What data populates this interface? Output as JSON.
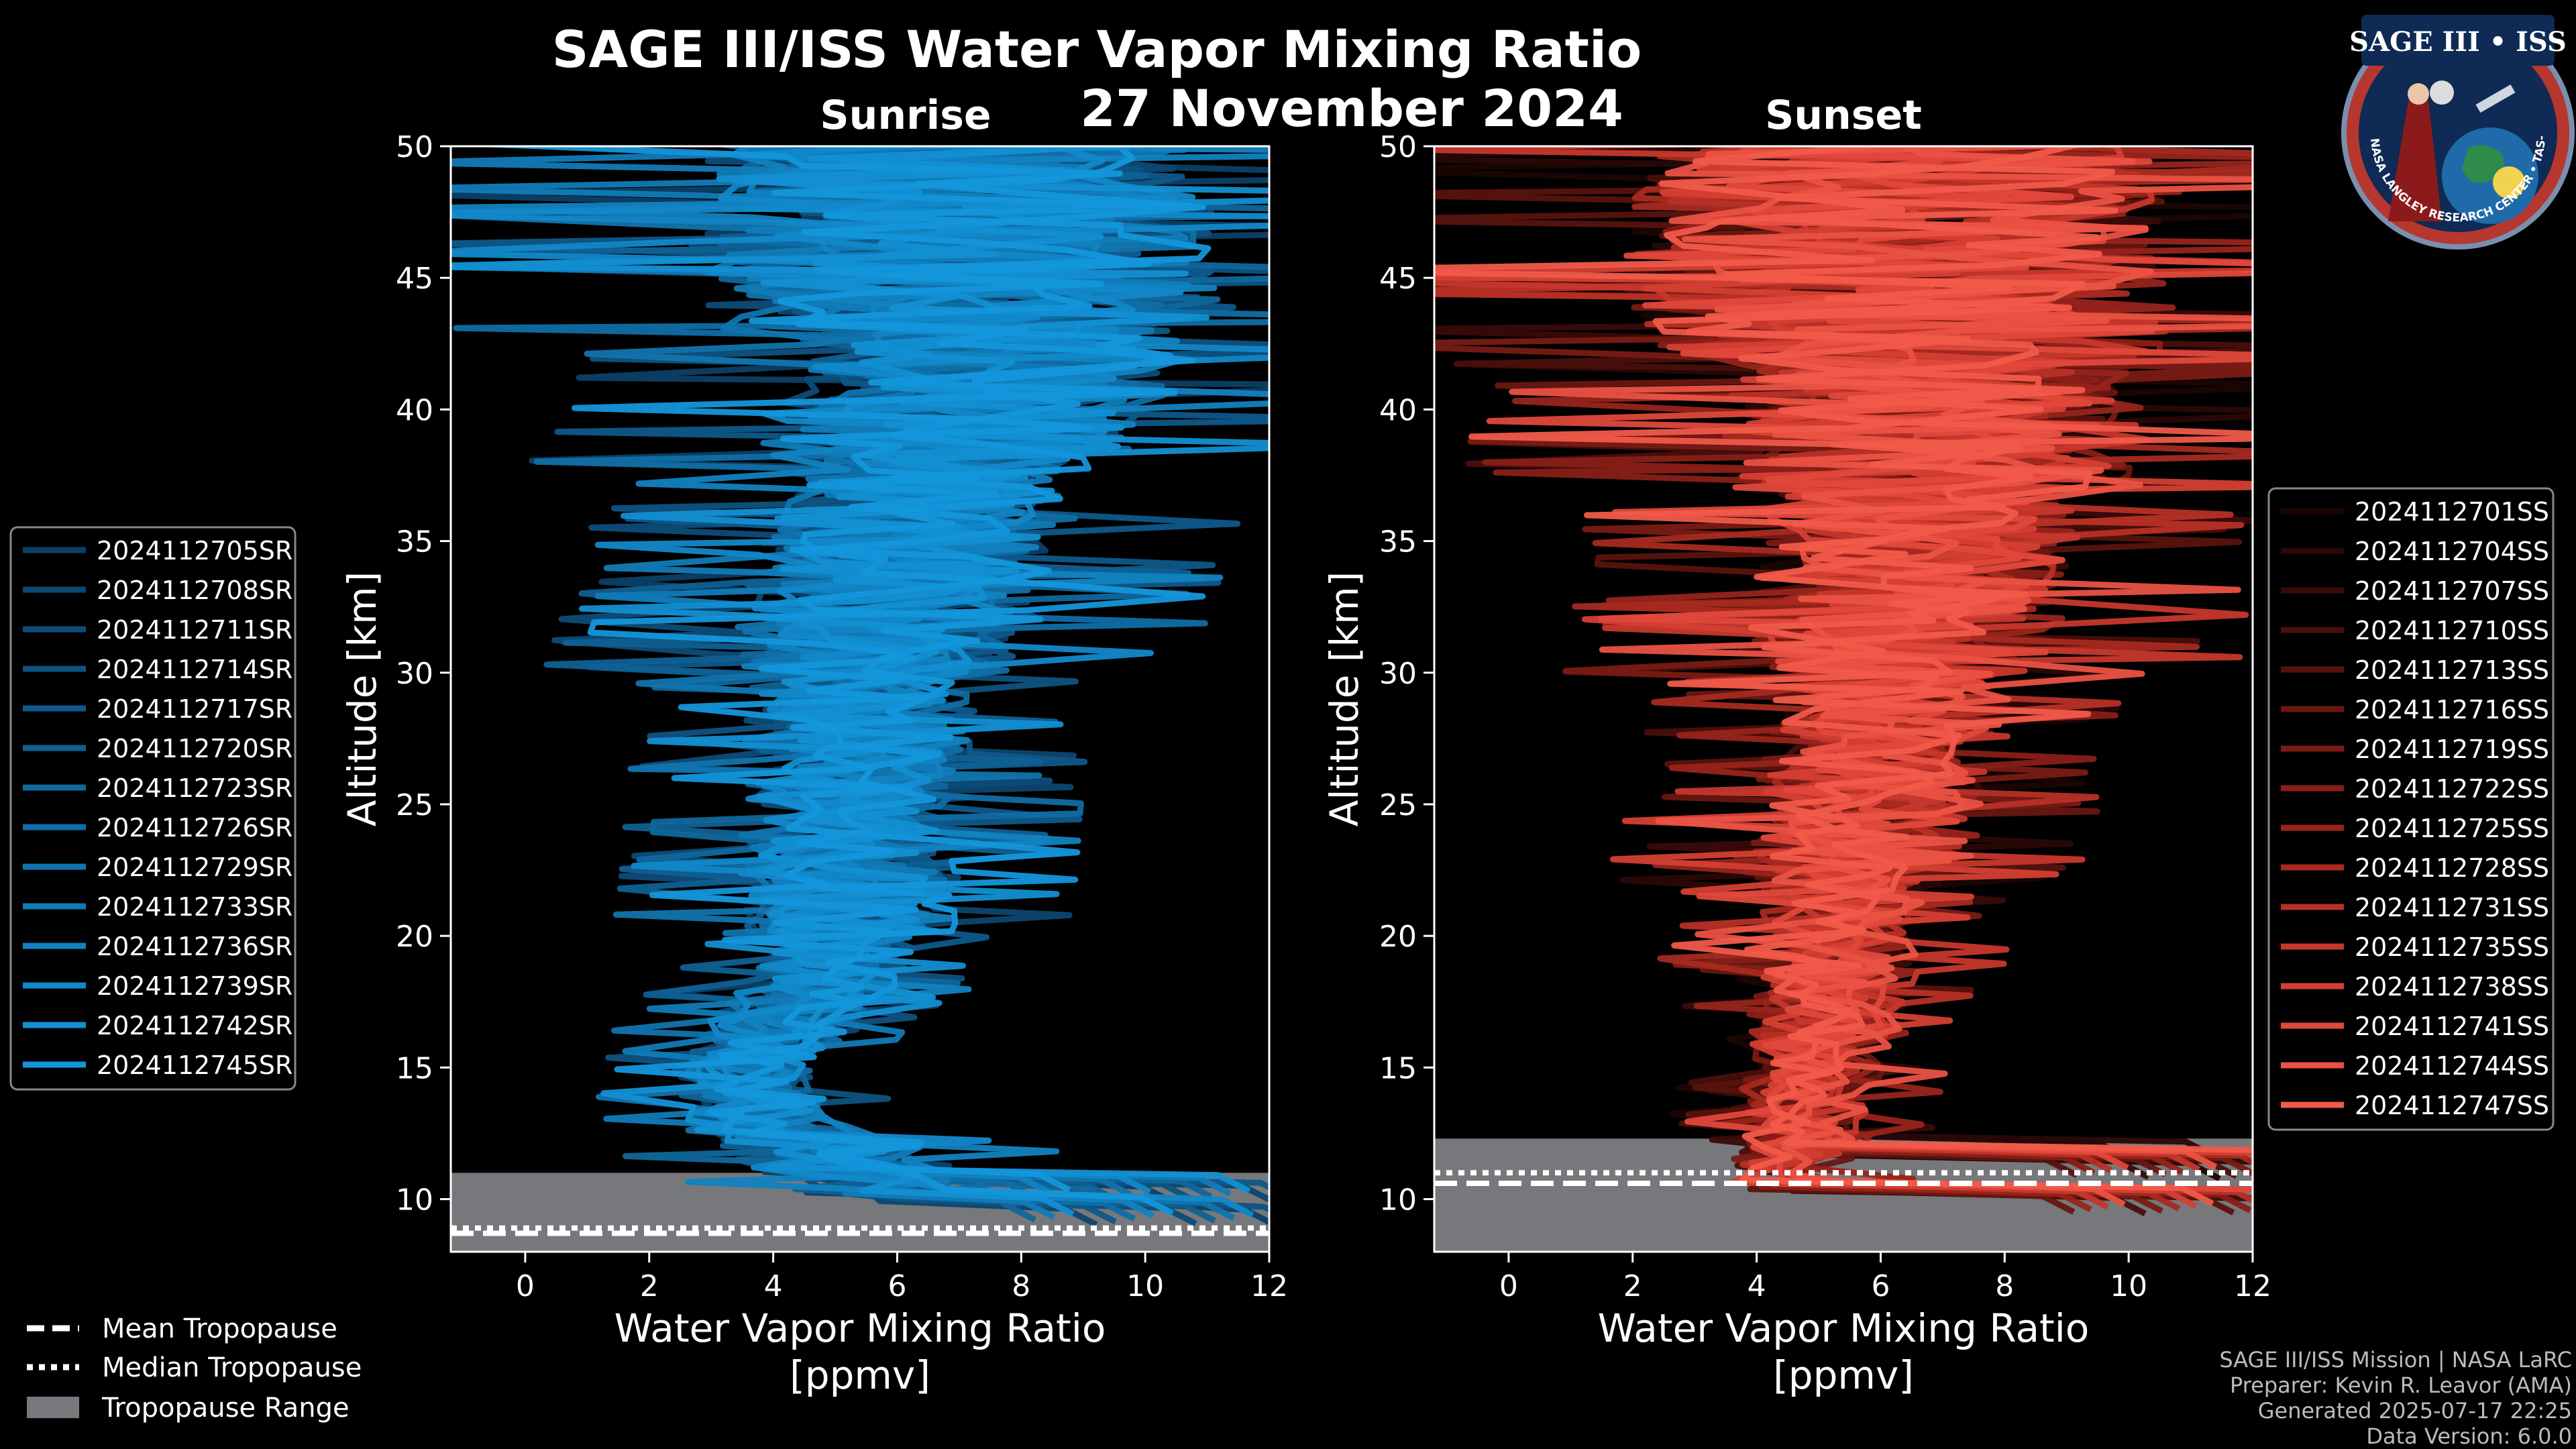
{
  "chart_data": {
    "type": "line",
    "title": "SAGE III/ISS Water Vapor Mixing Ratio",
    "subtitle": "27 November 2024",
    "panels": [
      {
        "name": "sunrise",
        "label": "Sunrise",
        "xlabel_line1": "Water Vapor Mixing Ratio",
        "xlabel_line2": "[ppmv]",
        "ylabel": "Altitude [km]",
        "xlim": [
          -1.2,
          12
        ],
        "ylim": [
          8,
          50
        ],
        "xticks": [
          0,
          2,
          4,
          6,
          8,
          10,
          12
        ],
        "yticks": [
          10,
          15,
          20,
          25,
          30,
          35,
          40,
          45,
          50
        ],
        "tropopause": {
          "range": [
            8,
            11
          ],
          "mean": 8.7,
          "median": 8.9
        },
        "legend_position": "left",
        "series": [
          {
            "name": "2024112705SR",
            "color": "#0c3f66"
          },
          {
            "name": "2024112708SR",
            "color": "#0d466f"
          },
          {
            "name": "2024112711SR",
            "color": "#0d4c78"
          },
          {
            "name": "2024112714SR",
            "color": "#0e5381"
          },
          {
            "name": "2024112717SR",
            "color": "#0e598a"
          },
          {
            "name": "2024112720SR",
            "color": "#0f6093"
          },
          {
            "name": "2024112723SR",
            "color": "#10679c"
          },
          {
            "name": "2024112726SR",
            "color": "#106ea5"
          },
          {
            "name": "2024112729SR",
            "color": "#1174ae"
          },
          {
            "name": "2024112733SR",
            "color": "#117bb7"
          },
          {
            "name": "2024112736SR",
            "color": "#1282c0"
          },
          {
            "name": "2024112739SR",
            "color": "#1288c9"
          },
          {
            "name": "2024112742SR",
            "color": "#138fd2"
          },
          {
            "name": "2024112745SR",
            "color": "#1496db"
          }
        ]
      },
      {
        "name": "sunset",
        "label": "Sunset",
        "xlabel_line1": "Water Vapor Mixing Ratio",
        "xlabel_line2": "[ppmv]",
        "ylabel": "Altitude [km]",
        "xlim": [
          -1.2,
          12
        ],
        "ylim": [
          8,
          50
        ],
        "xticks": [
          0,
          2,
          4,
          6,
          8,
          10,
          12
        ],
        "yticks": [
          10,
          15,
          20,
          25,
          30,
          35,
          40,
          45,
          50
        ],
        "tropopause": {
          "range": [
            8,
            12.3
          ],
          "mean": 10.6,
          "median": 11.0
        },
        "legend_position": "right",
        "series": [
          {
            "name": "2024112701SS",
            "color": "#1a0503"
          },
          {
            "name": "2024112704SS",
            "color": "#290806"
          },
          {
            "name": "2024112707SS",
            "color": "#390b08"
          },
          {
            "name": "2024112710SS",
            "color": "#490f0b"
          },
          {
            "name": "2024112713SS",
            "color": "#59130e"
          },
          {
            "name": "2024112716SS",
            "color": "#681711"
          },
          {
            "name": "2024112719SS",
            "color": "#781b14"
          },
          {
            "name": "2024112722SS",
            "color": "#881f17"
          },
          {
            "name": "2024112725SS",
            "color": "#97241b"
          },
          {
            "name": "2024112728SS",
            "color": "#a72a20"
          },
          {
            "name": "2024112731SS",
            "color": "#b73026"
          },
          {
            "name": "2024112735SS",
            "color": "#c6372c"
          },
          {
            "name": "2024112738SS",
            "color": "#d43f33"
          },
          {
            "name": "2024112741SS",
            "color": "#e0483b"
          },
          {
            "name": "2024112744SS",
            "color": "#ea5243"
          },
          {
            "name": "2024112747SS",
            "color": "#f15a4a"
          }
        ]
      }
    ],
    "tropopause_legend": [
      "Mean Tropopause",
      "Median Tropopause",
      "Tropopause Range"
    ]
  },
  "logo": {
    "text_top": "SAGE III • ISS",
    "text_bottom": "BALL • NASA LANGLEY RESEARCH CENTER • TAS-I • ESA"
  },
  "credits": {
    "line1": "SAGE III/ISS Mission | NASA LaRC",
    "line2": "Preparer: Kevin R. Leavor (AMA)",
    "line3": "Generated 2025-07-17 22:25",
    "line4": "Data Version: 6.0.0"
  },
  "colors": {
    "background": "#000000",
    "tropopause_fill": "#77787b",
    "axes": "#ffffff"
  }
}
